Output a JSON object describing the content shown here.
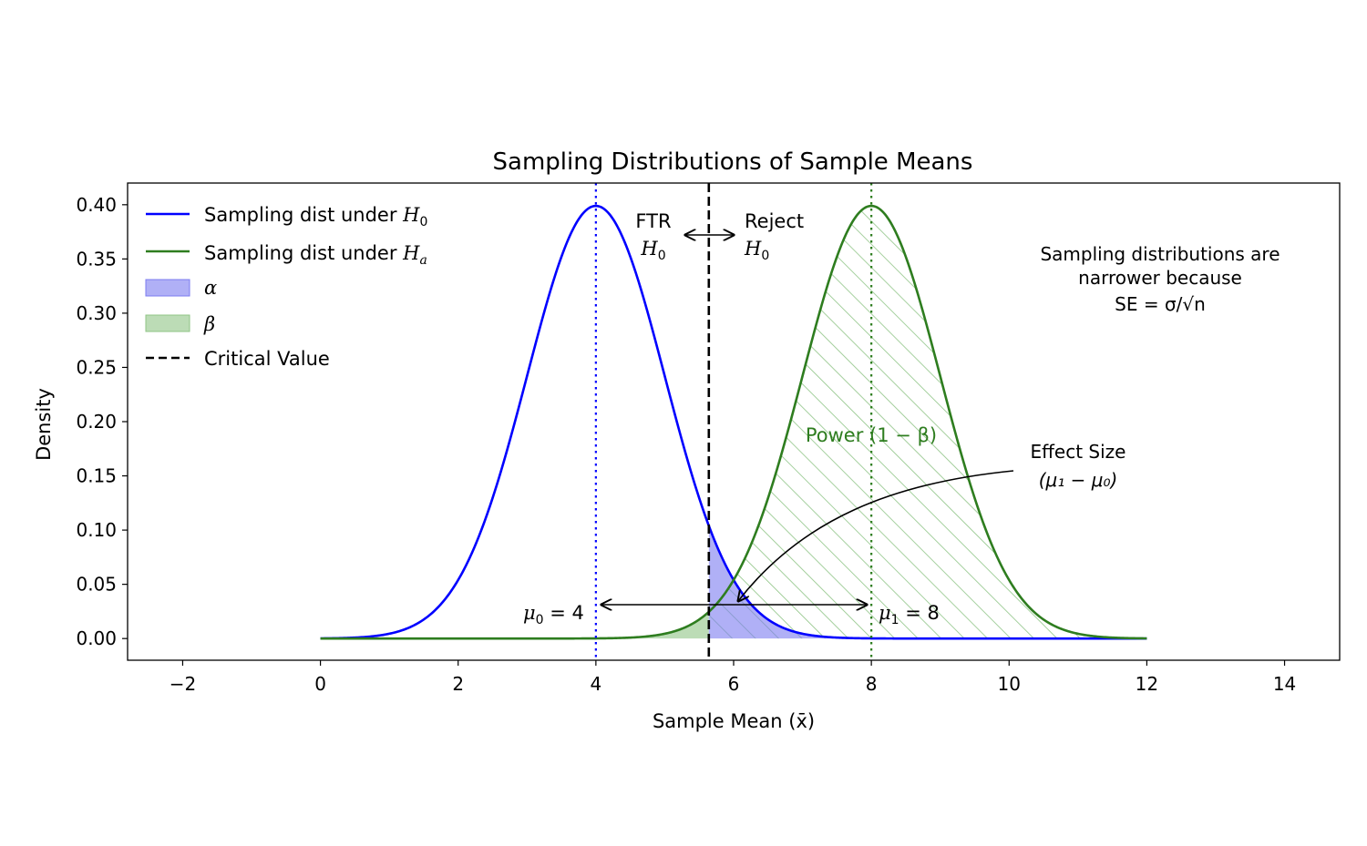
{
  "chart_data": {
    "type": "line",
    "title": "Sampling Distributions of Sample Means",
    "xlabel": "Sample Mean (x̄)",
    "ylabel": "Density",
    "xlim": [
      -2.8,
      14.8
    ],
    "ylim": [
      -0.02,
      0.42
    ],
    "xticks": [
      -2,
      0,
      2,
      4,
      6,
      8,
      10,
      12,
      14
    ],
    "xtick_labels": [
      "−2",
      "0",
      "2",
      "4",
      "6",
      "8",
      "10",
      "12",
      "14"
    ],
    "yticks": [
      0.0,
      0.05,
      0.1,
      0.15,
      0.2,
      0.25,
      0.3,
      0.35,
      0.4
    ],
    "ytick_labels": [
      "0.00",
      "0.05",
      "0.10",
      "0.15",
      "0.20",
      "0.25",
      "0.30",
      "0.35",
      "0.40"
    ],
    "grid": false,
    "legend_position": "top-left",
    "series": [
      {
        "name": "Sampling dist under H0",
        "legend_main": "Sampling dist under ",
        "legend_math": "H",
        "legend_sub": "0",
        "distribution": "normal",
        "mean": 4,
        "sd": 1,
        "x_range": [
          0,
          12
        ],
        "color": "#0000ff"
      },
      {
        "name": "Sampling dist under Ha",
        "legend_main": "Sampling dist under ",
        "legend_math": "H",
        "legend_sub": "a",
        "distribution": "normal",
        "mean": 8,
        "sd": 1,
        "x_range": [
          0,
          12
        ],
        "color": "#2e7d1f"
      }
    ],
    "shaded": [
      {
        "name": "α",
        "region": "x > critical value under H0",
        "color": "#7b7bf0"
      },
      {
        "name": "β",
        "region": "x < critical value under Ha",
        "color": "#8fc486"
      }
    ],
    "power_hatch": {
      "region": "x > critical value under Ha",
      "color": "#8fc486"
    },
    "critical_value": {
      "name": "Critical Value",
      "x": 5.64,
      "color": "#000000"
    },
    "mean_lines": [
      {
        "x": 4,
        "color": "#0000ff"
      },
      {
        "x": 8,
        "color": "#2e7d1f"
      }
    ],
    "annotations": {
      "mu0": {
        "math": "μ",
        "sub": "0",
        "rest": " = 4"
      },
      "mu1": {
        "math": "μ",
        "sub": "1",
        "rest": " = 8"
      },
      "ftr": {
        "line1": "FTR",
        "math": "H",
        "sub": "0"
      },
      "reject": {
        "line1": "Reject",
        "math": "H",
        "sub": "0"
      },
      "power": {
        "text": "Power (1 − β)",
        "color": "#2e7d1f"
      },
      "effect_size": {
        "line1": "Effect Size",
        "line2": "(μ₁ − μ₀)"
      },
      "se_note": {
        "line1": "Sampling distributions are",
        "line2": "narrower because",
        "line3": "SE = σ/√n"
      }
    }
  }
}
